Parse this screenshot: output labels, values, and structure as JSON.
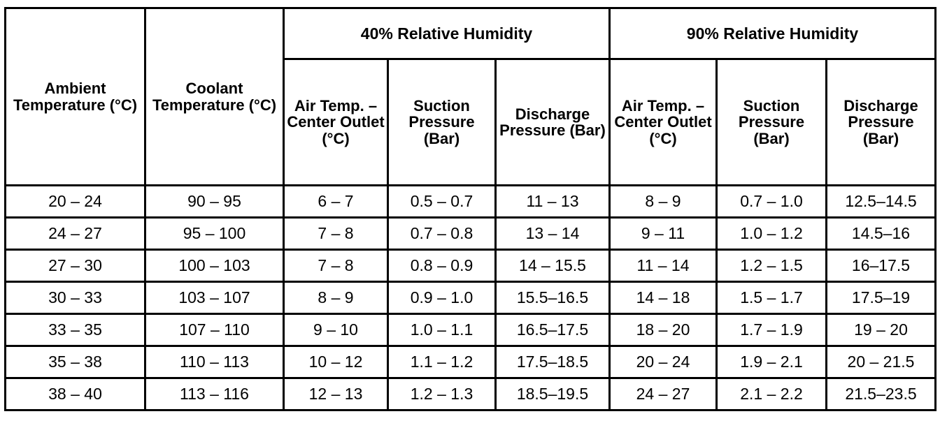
{
  "table": {
    "fixed_headers": [
      "Ambient Temperature (°C)",
      "Coolant Temperature (°C)"
    ],
    "group_headers": [
      "40% Relative Humidity",
      "90% Relative Humidity"
    ],
    "sub_headers": [
      "Air Temp. – Center Outlet (°C)",
      "Suction Pressure (Bar)",
      "Discharge Pressure (Bar)",
      "Air Temp. – Center Outlet (°C)",
      "Suction Pressure (Bar)",
      "Discharge Pressure (Bar)"
    ],
    "rows": [
      [
        "20 – 24",
        "90 – 95",
        "6 – 7",
        "0.5 – 0.7",
        "11 – 13",
        "8 – 9",
        "0.7 – 1.0",
        "12.5–14.5"
      ],
      [
        "24 – 27",
        "95 – 100",
        "7 – 8",
        "0.7 – 0.8",
        "13 – 14",
        "9 – 11",
        "1.0 – 1.2",
        "14.5–16"
      ],
      [
        "27 – 30",
        "100 – 103",
        "7 – 8",
        "0.8 – 0.9",
        "14 – 15.5",
        "11 – 14",
        "1.2 – 1.5",
        "16–17.5"
      ],
      [
        "30 – 33",
        "103 – 107",
        "8 – 9",
        "0.9 – 1.0",
        "15.5–16.5",
        "14 – 18",
        "1.5 – 1.7",
        "17.5–19"
      ],
      [
        "33 – 35",
        "107 – 110",
        "9 – 10",
        "1.0 – 1.1",
        "16.5–17.5",
        "18 – 20",
        "1.7 – 1.9",
        "19 – 20"
      ],
      [
        "35 – 38",
        "110 – 113",
        "10 – 12",
        "1.1 – 1.2",
        "17.5–18.5",
        "20 – 24",
        "1.9 – 2.1",
        "20 – 21.5"
      ],
      [
        "38 – 40",
        "113 – 116",
        "12 – 13",
        "1.2 – 1.3",
        "18.5–19.5",
        "24 – 27",
        "2.1 – 2.2",
        "21.5–23.5"
      ]
    ]
  }
}
